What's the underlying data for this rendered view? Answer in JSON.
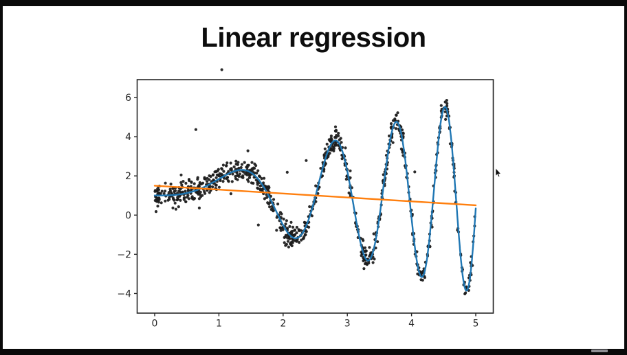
{
  "title": "Linear regression",
  "colors": {
    "background": "#ffffff",
    "letterbox": "#0a0a0a",
    "axis": "#262626",
    "scatter": "#1c1c1c",
    "model_line": "#1f77b4",
    "regression_line": "#ff7f0e",
    "notch": "#8f8f94"
  },
  "chart_data": {
    "type": "scatter",
    "title": "Linear regression",
    "xlabel": "",
    "ylabel": "",
    "xlim": [
      -0.273,
      5.273
    ],
    "ylim": [
      -5.0,
      6.91
    ],
    "x_ticks": [
      0,
      1,
      2,
      3,
      4,
      5
    ],
    "x_tick_labels": [
      "0",
      "1",
      "2",
      "3",
      "4",
      "5"
    ],
    "y_ticks": [
      6,
      4,
      2,
      0,
      -2,
      -4
    ],
    "y_tick_labels": [
      "6",
      "4",
      "2",
      "0",
      "−2",
      "−4"
    ],
    "grid": false,
    "legend": null,
    "series": [
      {
        "name": "noisy data points",
        "kind": "scatter",
        "color": "#1c1c1c",
        "marker_radius": 2.1,
        "n": 900,
        "x_range": [
          0,
          5
        ],
        "model": "x*sin(x^2)+1",
        "noise_sigma": 0.3,
        "outlier_fraction": 0.013,
        "outlier_sigma": 0.85,
        "seed": 7
      },
      {
        "name": "true model curve",
        "kind": "line",
        "color": "#1f77b4",
        "stroke_width": 2.4,
        "model": "x*sin(x^2)+1",
        "x_range": [
          0,
          5
        ]
      },
      {
        "name": "linear regression fit",
        "kind": "segment",
        "color": "#ff7f0e",
        "stroke_width": 2.4,
        "endpoints": [
          [
            0,
            1.5
          ],
          [
            5,
            0.5
          ]
        ]
      }
    ]
  },
  "cursor": {
    "icon": "arrow-pointer"
  }
}
